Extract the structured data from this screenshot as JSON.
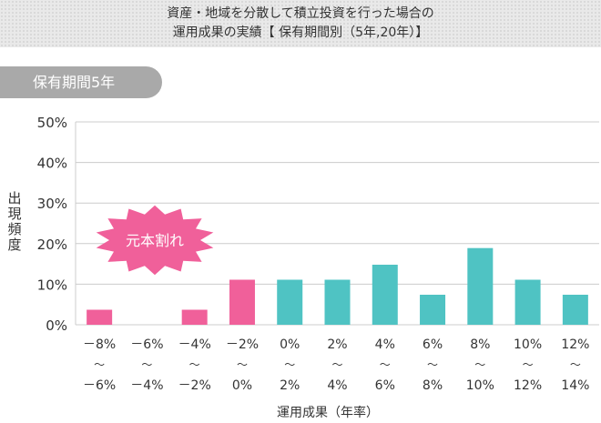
{
  "header": {
    "line1": "資産・地域を分散して積立投資を行った場合の",
    "line2": "運用成果の実績【 保有期間別（5年,20年）】"
  },
  "tab_label": "保有期間5年",
  "badge_label": "元本割れ",
  "colors": {
    "loss": "#f0609a",
    "gain": "#4fc3c3",
    "tab": "#a9a9a9",
    "axis": "#cccccc"
  },
  "chart_data": {
    "type": "bar",
    "ylabel": "出現頻度",
    "xlabel": "運用成果（年率）",
    "ylim": [
      0,
      50
    ],
    "yticks": [
      "0%",
      "10%",
      "20%",
      "30%",
      "40%",
      "50%"
    ],
    "ytick_values": [
      0,
      10,
      20,
      30,
      40,
      50
    ],
    "categories": [
      {
        "from": "－8%",
        "to": "－6%"
      },
      {
        "from": "－6%",
        "to": "－4%"
      },
      {
        "from": "－4%",
        "to": "－2%"
      },
      {
        "from": "－2%",
        "to": "0%"
      },
      {
        "from": "0%",
        "to": "2%"
      },
      {
        "from": "2%",
        "to": "4%"
      },
      {
        "from": "4%",
        "to": "6%"
      },
      {
        "from": "6%",
        "to": "8%"
      },
      {
        "from": "8%",
        "to": "10%"
      },
      {
        "from": "10%",
        "to": "12%"
      },
      {
        "from": "12%",
        "to": "14%"
      }
    ],
    "tilde": "～",
    "values": [
      3.7,
      0,
      3.7,
      11.1,
      11.1,
      11.1,
      14.8,
      7.4,
      18.9,
      11.1,
      7.4
    ],
    "loss_flags": [
      true,
      true,
      true,
      true,
      false,
      false,
      false,
      false,
      false,
      false,
      false
    ]
  }
}
